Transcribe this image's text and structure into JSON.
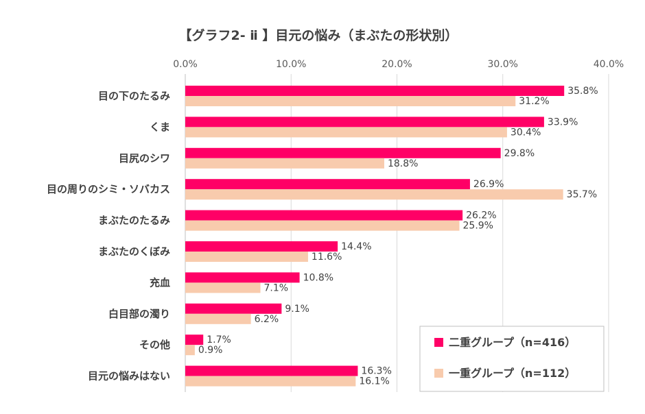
{
  "chart_data": {
    "type": "bar",
    "orientation": "horizontal",
    "title": "【グラフ2- ⅱ 】目元の悩み（まぶたの形状別）",
    "xlim": [
      0,
      40
    ],
    "ticks": [
      0,
      10,
      20,
      30,
      40
    ],
    "tick_labels": [
      "0.0%",
      "10.0%",
      "20.0%",
      "30.0%",
      "40.0%"
    ],
    "categories": [
      "目の下のたるみ",
      "くま",
      "目尻のシワ",
      "目の周りのシミ・ソバカス",
      "まぶたのたるみ",
      "まぶたのくぼみ",
      "充血",
      "白目部の濁り",
      "その他",
      "目元の悩みはない"
    ],
    "series": [
      {
        "name": "二重グループ（n=416）",
        "color": "#FF0066",
        "values": [
          35.8,
          33.9,
          29.8,
          26.9,
          26.2,
          14.4,
          10.8,
          9.1,
          1.7,
          16.3
        ],
        "labels": [
          "35.8%",
          "33.9%",
          "29.8%",
          "26.9%",
          "26.2%",
          "14.4%",
          "10.8%",
          "9.1%",
          "1.7%",
          "16.3%"
        ]
      },
      {
        "name": "一重グループ（n=112）",
        "color": "#F8CBAD",
        "values": [
          31.2,
          30.4,
          18.8,
          35.7,
          25.9,
          11.6,
          7.1,
          6.2,
          0.9,
          16.1
        ],
        "labels": [
          "31.2%",
          "30.4%",
          "18.8%",
          "35.7%",
          "25.9%",
          "11.6%",
          "7.1%",
          "6.2%",
          "0.9%",
          "16.1%"
        ]
      }
    ],
    "grid": true,
    "legend_position": "bottom-right"
  }
}
